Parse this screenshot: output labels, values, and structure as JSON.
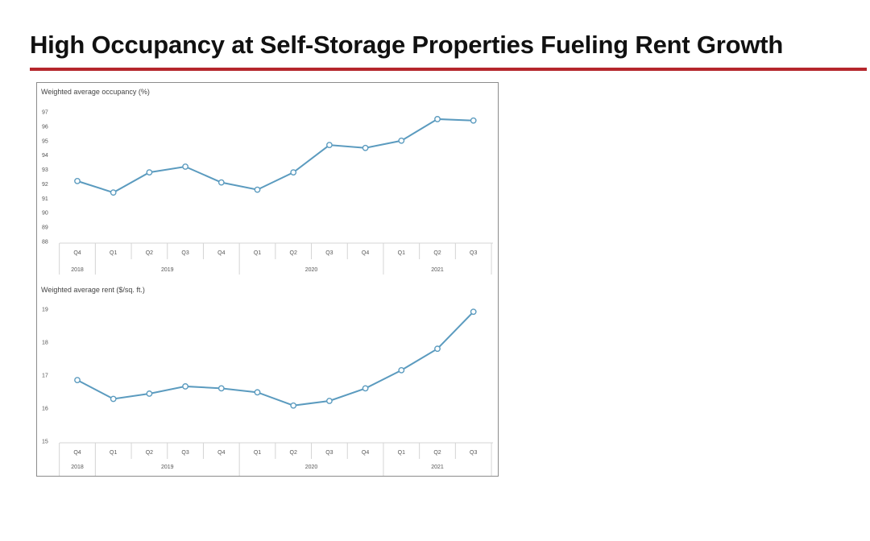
{
  "slide": {
    "title": "High Occupancy at Self-Storage Properties Fueling Rent Growth",
    "accent_color": "#b5262c"
  },
  "chart_data": [
    {
      "type": "line",
      "title": "Weighted average occupancy (%)",
      "categories": [
        "Q4",
        "Q1",
        "Q2",
        "Q3",
        "Q4",
        "Q1",
        "Q2",
        "Q3",
        "Q4",
        "Q1",
        "Q2",
        "Q3"
      ],
      "year_groups": [
        {
          "label": "2018",
          "span": 1
        },
        {
          "label": "2019",
          "span": 4
        },
        {
          "label": "2020",
          "span": 4
        },
        {
          "label": "2021",
          "span": 3
        }
      ],
      "values": [
        92.2,
        91.4,
        92.8,
        93.2,
        92.1,
        91.6,
        92.8,
        94.7,
        94.5,
        95.0,
        96.5,
        96.4
      ],
      "ylim": [
        88,
        97
      ],
      "yticks": [
        97,
        96,
        95,
        94,
        93,
        92,
        91,
        90,
        89,
        88
      ],
      "grid": false,
      "color": "#5b9bbf"
    },
    {
      "type": "line",
      "title": "Weighted average rent ($/sq. ft.)",
      "categories": [
        "Q4",
        "Q1",
        "Q2",
        "Q3",
        "Q4",
        "Q1",
        "Q2",
        "Q3",
        "Q4",
        "Q1",
        "Q2",
        "Q3"
      ],
      "year_groups": [
        {
          "label": "2018",
          "span": 1
        },
        {
          "label": "2019",
          "span": 4
        },
        {
          "label": "2020",
          "span": 4
        },
        {
          "label": "2021",
          "span": 3
        }
      ],
      "values": [
        16.85,
        16.28,
        16.44,
        16.66,
        16.6,
        16.48,
        16.08,
        16.22,
        16.6,
        17.15,
        17.8,
        18.92
      ],
      "ylim": [
        15,
        19
      ],
      "yticks": [
        19,
        18,
        17,
        16,
        15
      ],
      "grid": false,
      "color": "#5b9bbf"
    }
  ]
}
